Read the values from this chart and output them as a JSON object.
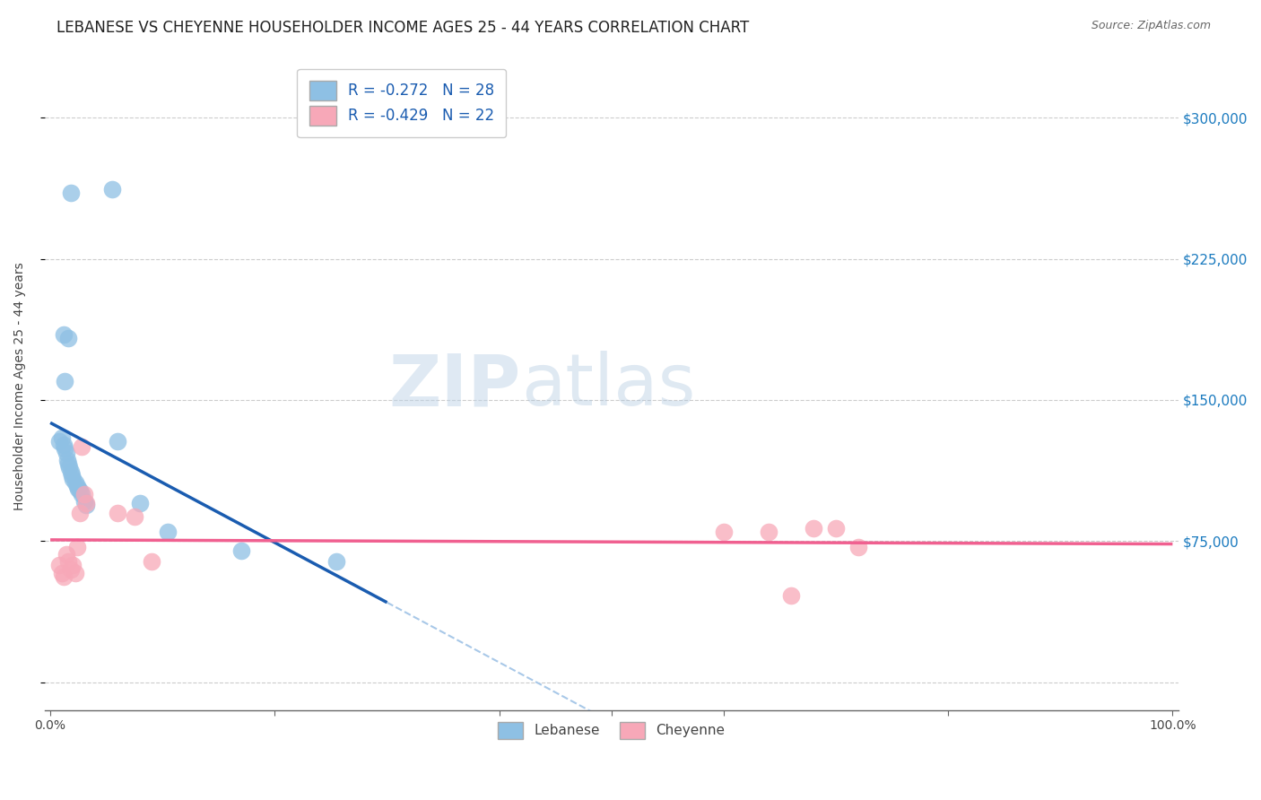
{
  "title": "LEBANESE VS CHEYENNE HOUSEHOLDER INCOME AGES 25 - 44 YEARS CORRELATION CHART",
  "source": "Source: ZipAtlas.com",
  "ylabel": "Householder Income Ages 25 - 44 years",
  "yticks": [
    0,
    75000,
    150000,
    225000,
    300000
  ],
  "ytick_labels": [
    "",
    "$75,000",
    "$150,000",
    "$225,000",
    "$300,000"
  ],
  "ylim": [
    -15000,
    330000
  ],
  "xlim": [
    -0.005,
    1.005
  ],
  "legend_r1": "R = -0.272   N = 28",
  "legend_r2": "R = -0.429   N = 22",
  "watermark_zip": "ZIP",
  "watermark_atlas": "atlas",
  "blue_color": "#8ec0e4",
  "pink_color": "#f7a8b8",
  "blue_line_color": "#1a5cb0",
  "pink_line_color": "#f06090",
  "dashed_line_color": "#a8c8e8",
  "background": "#ffffff",
  "lebanese_x": [
    0.018,
    0.055,
    0.012,
    0.016,
    0.013,
    0.008,
    0.01,
    0.012,
    0.013,
    0.014,
    0.015,
    0.016,
    0.017,
    0.018,
    0.019,
    0.02,
    0.022,
    0.024,
    0.025,
    0.026,
    0.028,
    0.03,
    0.032,
    0.06,
    0.08,
    0.105,
    0.17,
    0.255
  ],
  "lebanese_y": [
    260000,
    262000,
    185000,
    183000,
    160000,
    128000,
    130000,
    126000,
    124000,
    122000,
    118000,
    116000,
    114000,
    112000,
    110000,
    108000,
    106000,
    104000,
    103000,
    102000,
    100000,
    96000,
    94000,
    128000,
    95000,
    80000,
    70000,
    64000
  ],
  "cheyenne_x": [
    0.008,
    0.01,
    0.012,
    0.014,
    0.016,
    0.018,
    0.02,
    0.022,
    0.024,
    0.026,
    0.028,
    0.03,
    0.032,
    0.06,
    0.075,
    0.09,
    0.6,
    0.64,
    0.66,
    0.68,
    0.7,
    0.72
  ],
  "cheyenne_y": [
    62000,
    58000,
    56000,
    68000,
    64000,
    60000,
    62000,
    58000,
    72000,
    90000,
    125000,
    100000,
    95000,
    90000,
    88000,
    64000,
    80000,
    80000,
    46000,
    82000,
    82000,
    72000
  ],
  "title_fontsize": 12,
  "label_fontsize": 10,
  "tick_fontsize": 10,
  "source_fontsize": 9,
  "grid_color": "#cccccc"
}
